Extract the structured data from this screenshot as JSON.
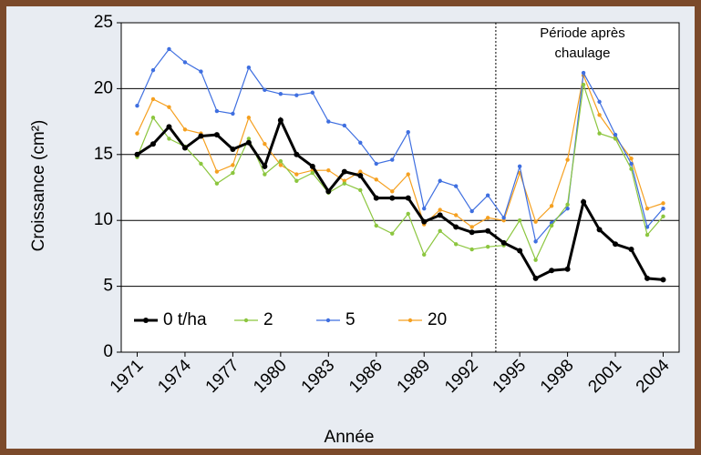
{
  "chart_data": {
    "type": "line",
    "x_label": "Année",
    "y_label": "Croissance (cm²)",
    "x": [
      1971,
      1972,
      1973,
      1974,
      1975,
      1976,
      1977,
      1978,
      1979,
      1980,
      1981,
      1982,
      1983,
      1984,
      1985,
      1986,
      1987,
      1988,
      1989,
      1990,
      1991,
      1992,
      1993,
      1994,
      1995,
      1996,
      1997,
      1998,
      1999,
      2000,
      2001,
      2002,
      2003,
      2004
    ],
    "series": [
      {
        "name": "0 t/ha",
        "color": "#000000",
        "values": [
          15.0,
          15.8,
          17.1,
          15.5,
          16.4,
          16.5,
          15.4,
          15.9,
          14.1,
          17.6,
          15.0,
          14.1,
          12.2,
          13.7,
          13.4,
          11.7,
          11.7,
          11.7,
          9.9,
          10.4,
          9.5,
          9.1,
          9.2,
          8.3,
          7.7,
          5.6,
          6.2,
          6.3,
          11.4,
          9.3,
          8.2,
          7.8,
          5.6,
          5.5
        ]
      },
      {
        "name": "2",
        "color": "#8cc63f",
        "values": [
          14.8,
          17.8,
          16.2,
          15.6,
          14.3,
          12.8,
          13.6,
          16.2,
          13.5,
          14.5,
          13.0,
          13.6,
          12.1,
          12.8,
          12.3,
          9.6,
          9.0,
          10.5,
          7.4,
          9.2,
          8.2,
          7.8,
          8.0,
          8.1,
          10.0,
          7.0,
          9.6,
          11.2,
          20.3,
          16.6,
          16.2,
          13.9,
          8.9,
          10.3
        ]
      },
      {
        "name": "5",
        "color": "#3f6fe0",
        "values": [
          18.7,
          21.4,
          23.0,
          22.0,
          21.3,
          18.3,
          18.1,
          21.6,
          19.9,
          19.6,
          19.5,
          19.7,
          17.5,
          17.2,
          15.9,
          14.3,
          14.6,
          16.7,
          10.9,
          13.0,
          12.6,
          10.7,
          11.9,
          10.2,
          14.1,
          8.4,
          9.8,
          10.9,
          21.2,
          19.0,
          16.5,
          14.3,
          9.5,
          10.9
        ]
      },
      {
        "name": "20",
        "color": "#f5a020",
        "values": [
          16.6,
          19.2,
          18.6,
          16.9,
          16.6,
          13.7,
          14.2,
          17.8,
          15.8,
          14.2,
          13.5,
          13.8,
          13.8,
          13.0,
          13.7,
          13.1,
          12.2,
          13.5,
          9.7,
          10.8,
          10.4,
          9.5,
          10.2,
          10.0,
          13.6,
          9.9,
          11.1,
          14.6,
          21.0,
          18.0,
          16.3,
          14.7,
          10.9,
          11.3
        ]
      }
    ],
    "xlim": [
      1970,
      2005
    ],
    "xticks": [
      1971,
      1974,
      1977,
      1980,
      1983,
      1986,
      1989,
      1992,
      1995,
      1998,
      2001,
      2004
    ],
    "ylim": [
      0,
      25
    ],
    "yticks": [
      0,
      5,
      10,
      15,
      20,
      25
    ],
    "grid": true,
    "legend": "bottom-left",
    "annotation": {
      "lines": [
        "Période après",
        "chaulage"
      ],
      "divider_x": 1993.5
    }
  }
}
